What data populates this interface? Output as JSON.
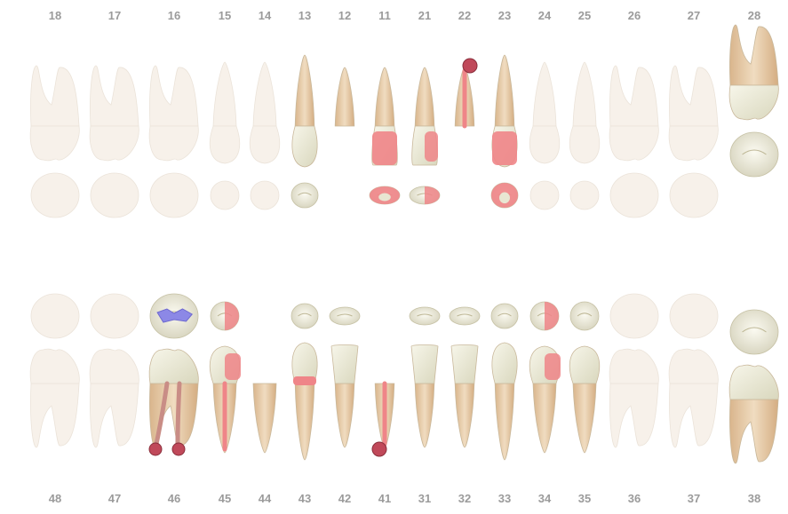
{
  "upper_jaw": {
    "teeth": [
      {
        "number": "18",
        "type": "molar",
        "state": "absent"
      },
      {
        "number": "17",
        "type": "molar",
        "state": "absent"
      },
      {
        "number": "16",
        "type": "molar",
        "state": "absent"
      },
      {
        "number": "15",
        "type": "premolar",
        "state": "absent"
      },
      {
        "number": "14",
        "type": "premolar",
        "state": "absent"
      },
      {
        "number": "13",
        "type": "canine",
        "state": "present"
      },
      {
        "number": "12",
        "type": "incisor",
        "state": "root-remnant"
      },
      {
        "number": "11",
        "type": "incisor",
        "state": "present",
        "filling": "crown"
      },
      {
        "number": "21",
        "type": "incisor",
        "state": "present",
        "filling": "distal"
      },
      {
        "number": "22",
        "type": "incisor",
        "state": "root-remnant",
        "filling": "root-canal",
        "apical_lesion": true
      },
      {
        "number": "23",
        "type": "canine",
        "state": "present",
        "filling": "crown"
      },
      {
        "number": "24",
        "type": "premolar",
        "state": "absent"
      },
      {
        "number": "25",
        "type": "premolar",
        "state": "absent"
      },
      {
        "number": "26",
        "type": "molar",
        "state": "absent"
      },
      {
        "number": "27",
        "type": "molar",
        "state": "absent"
      },
      {
        "number": "28",
        "type": "molar",
        "state": "present",
        "position": "displaced"
      }
    ]
  },
  "lower_jaw": {
    "teeth": [
      {
        "number": "48",
        "type": "molar",
        "state": "absent"
      },
      {
        "number": "47",
        "type": "molar",
        "state": "absent"
      },
      {
        "number": "46",
        "type": "molar",
        "state": "present",
        "filling": "occlusal-blue",
        "root_canal": true,
        "apical_lesion": true
      },
      {
        "number": "45",
        "type": "premolar",
        "state": "present",
        "filling": "mesial",
        "root_canal": true
      },
      {
        "number": "44",
        "type": "premolar",
        "state": "root-remnant"
      },
      {
        "number": "43",
        "type": "canine",
        "state": "present",
        "filling": "cervical"
      },
      {
        "number": "42",
        "type": "incisor",
        "state": "present"
      },
      {
        "number": "41",
        "type": "incisor",
        "state": "root-remnant",
        "root_canal": true,
        "apical_lesion": true
      },
      {
        "number": "31",
        "type": "incisor",
        "state": "present"
      },
      {
        "number": "32",
        "type": "incisor",
        "state": "present"
      },
      {
        "number": "33",
        "type": "canine",
        "state": "present"
      },
      {
        "number": "34",
        "type": "premolar",
        "state": "present",
        "filling": "distal"
      },
      {
        "number": "35",
        "type": "premolar",
        "state": "present"
      },
      {
        "number": "36",
        "type": "molar",
        "state": "absent"
      },
      {
        "number": "37",
        "type": "molar",
        "state": "absent"
      },
      {
        "number": "38",
        "type": "molar",
        "state": "present",
        "position": "displaced"
      }
    ]
  },
  "colors": {
    "label": "#9b9b9b",
    "crown": "#ecebd8",
    "root": "#e8cfae",
    "root_shade": "#cfa77e",
    "ghost": "#f7f1ea",
    "ghost_stroke": "#ebe3d9",
    "filling_red": "#ef8588",
    "filling_blue": "#8c88e6",
    "lesion": "#c0495a"
  }
}
